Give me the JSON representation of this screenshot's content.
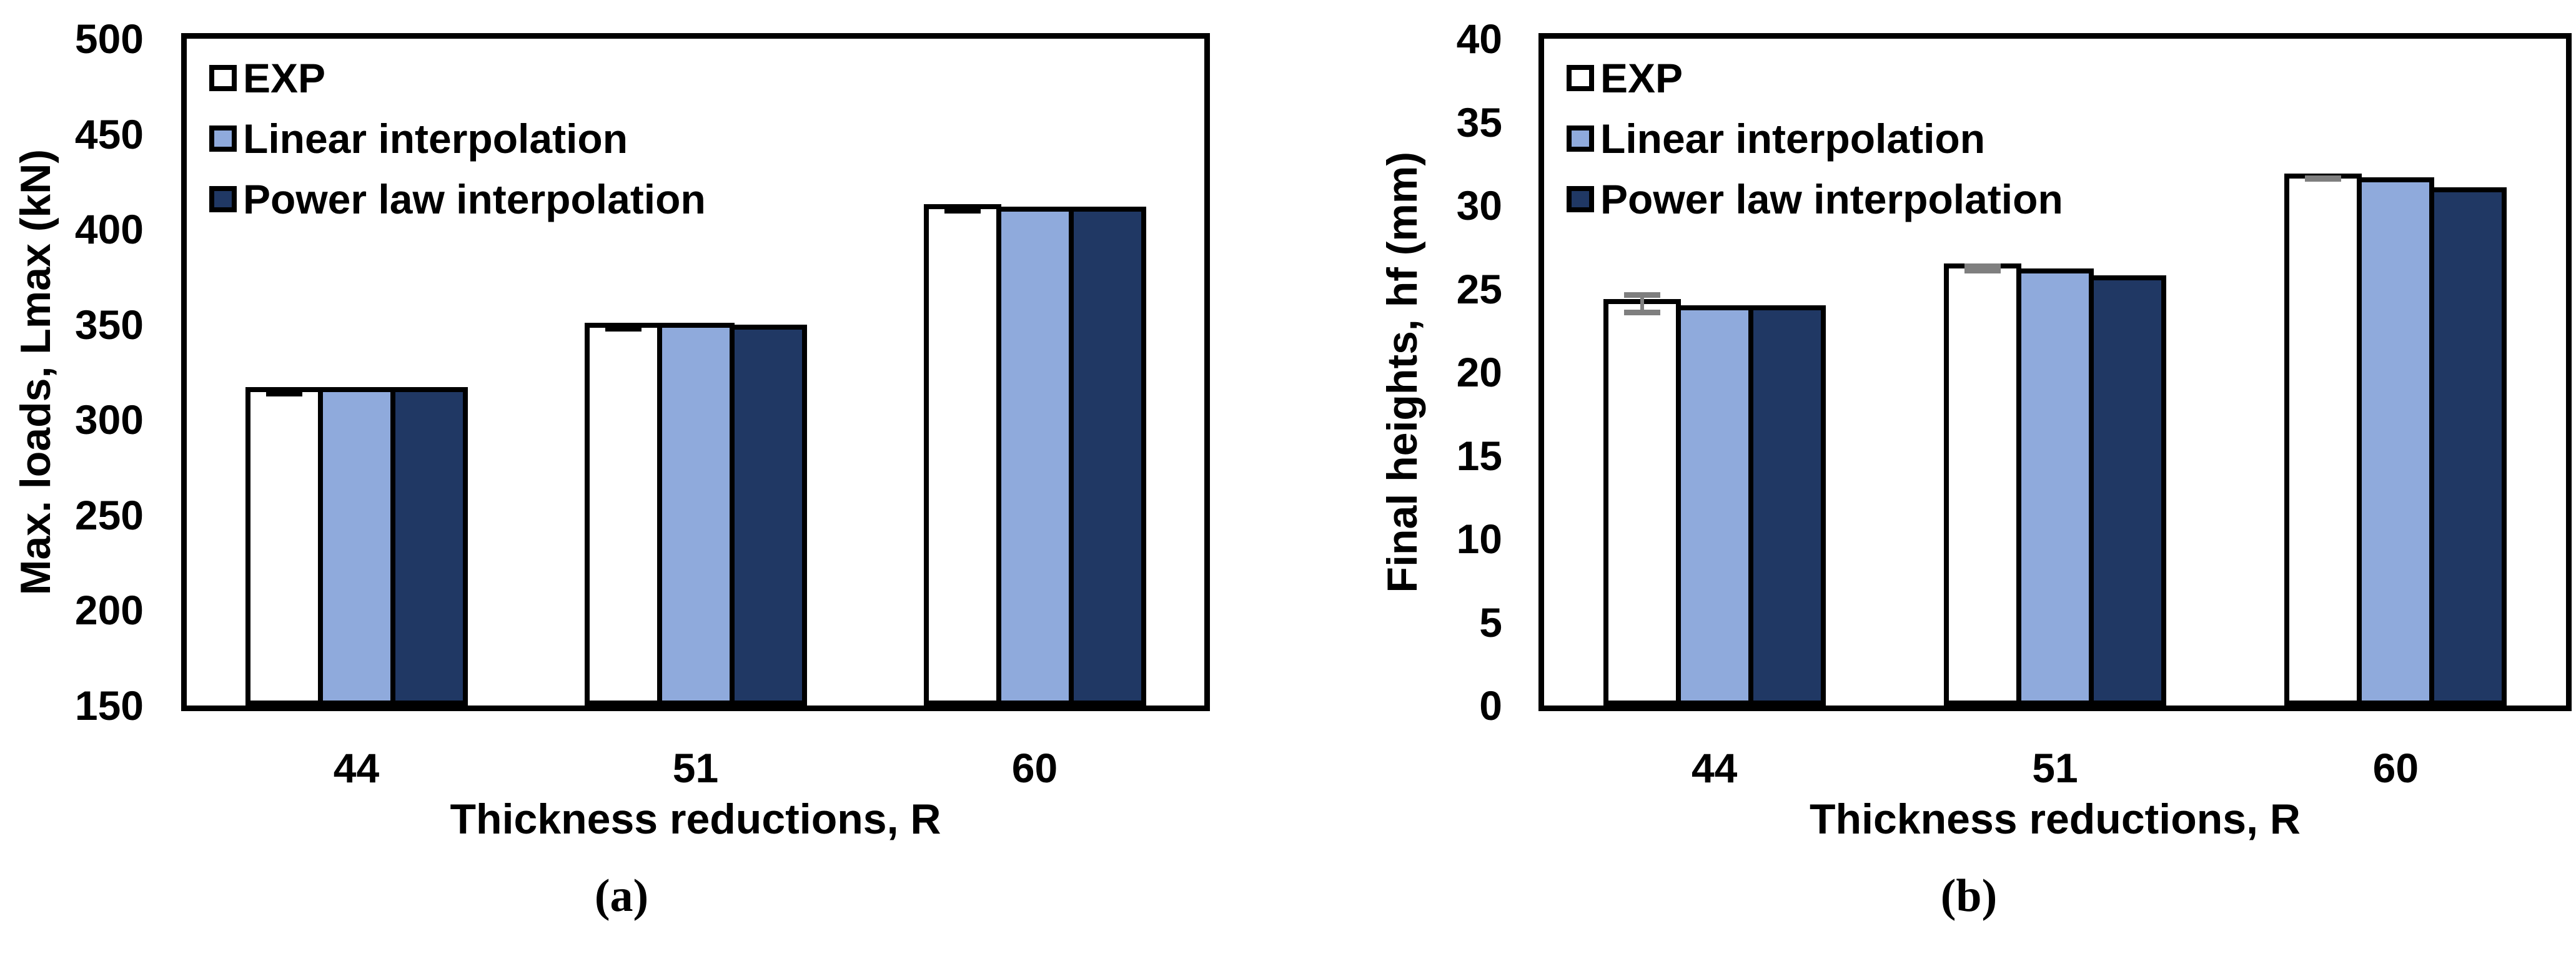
{
  "figure": {
    "background": "#FFFFFF",
    "panels": [
      {
        "label": "(a)"
      },
      {
        "label": "(b)"
      }
    ]
  },
  "palette": {
    "bar_border": "#000000",
    "exp_fill": "#FFFFFF",
    "linear_fill": "#8FAADC",
    "power_fill": "#203864",
    "error_bar_a": "#000000",
    "error_bar_b": "#7F7F7F"
  },
  "chart_data": [
    {
      "panel": "a",
      "type": "bar",
      "title": "",
      "xlabel": "Thickness reductions, R",
      "ylabel": "Max. loads, Lmax (kN)",
      "categories": [
        "44",
        "51",
        "60"
      ],
      "ylim": [
        150,
        500
      ],
      "ytick_step": 50,
      "yticks": [
        500,
        450,
        400,
        350,
        300,
        250,
        200,
        150
      ],
      "grid": false,
      "legend_position": "top-left-inside",
      "error_bar_color": "#000000",
      "series": [
        {
          "name": "EXP",
          "fill": "#FFFFFF",
          "values": [
            317,
            351,
            413
          ],
          "errors": [
            2,
            2,
            2
          ]
        },
        {
          "name": "Linear interpolation",
          "fill": "#8FAADC",
          "values": [
            317,
            351,
            412
          ]
        },
        {
          "name": "Power law interpolation",
          "fill": "#203864",
          "values": [
            317,
            350,
            412
          ]
        }
      ]
    },
    {
      "panel": "b",
      "type": "bar",
      "title": "",
      "xlabel": "Thickness reductions, R",
      "ylabel": "Final heights, hf (mm)",
      "categories": [
        "44",
        "51",
        "60"
      ],
      "ylim": [
        0,
        40
      ],
      "ytick_step": 5,
      "yticks": [
        40,
        35,
        30,
        25,
        20,
        15,
        10,
        5,
        0
      ],
      "grid": false,
      "legend_position": "top-left-inside",
      "error_bar_color": "#7F7F7F",
      "series": [
        {
          "name": "EXP",
          "fill": "#FFFFFF",
          "values": [
            24.4,
            26.5,
            31.9
          ],
          "errors": [
            0.7,
            0.3,
            0.15
          ]
        },
        {
          "name": "Linear interpolation",
          "fill": "#8FAADC",
          "values": [
            24.0,
            26.2,
            31.7
          ]
        },
        {
          "name": "Power law interpolation",
          "fill": "#203864",
          "values": [
            24.0,
            25.8,
            31.1
          ]
        }
      ]
    }
  ]
}
